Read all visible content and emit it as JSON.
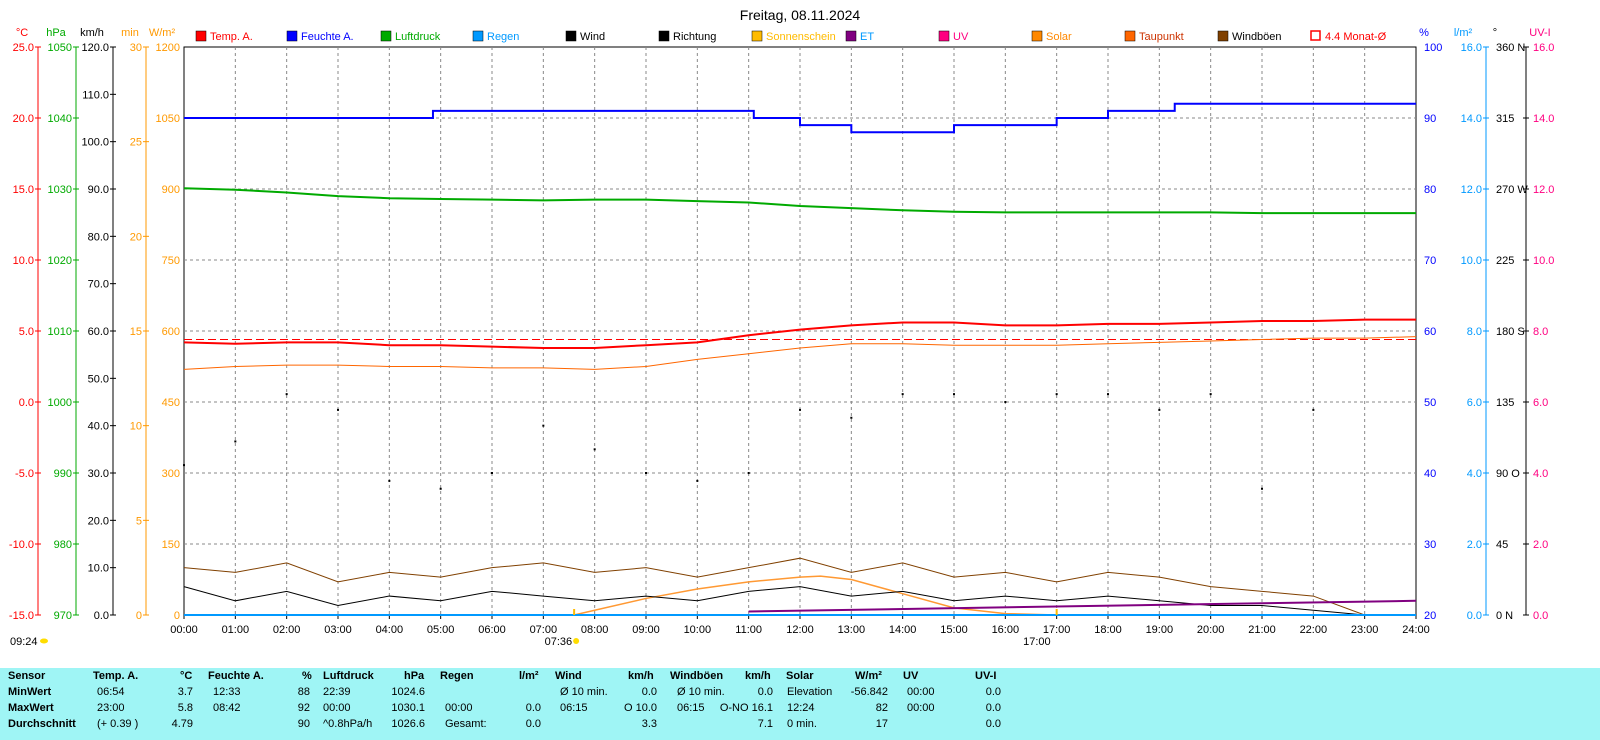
{
  "chart_data": {
    "type": "line",
    "title": "Freitag, 08.11.2024",
    "x_ticks": [
      "00:00",
      "01:00",
      "02:00",
      "03:00",
      "04:00",
      "05:00",
      "06:00",
      "07:00",
      "08:00",
      "09:00",
      "10:00",
      "11:00",
      "12:00",
      "13:00",
      "14:00",
      "15:00",
      "16:00",
      "17:00",
      "18:00",
      "19:00",
      "20:00",
      "21:00",
      "22:00",
      "23:00",
      "24:00"
    ],
    "x_range_hours": [
      0,
      24
    ],
    "grid": true,
    "legend": [
      {
        "name": "Temp. A.",
        "color": "#ff0000"
      },
      {
        "name": "Feuchte A.",
        "color": "#0000ff"
      },
      {
        "name": "Luftdruck",
        "color": "#00aa00"
      },
      {
        "name": "Regen",
        "color": "#0099ff"
      },
      {
        "name": "Wind",
        "color": "#000000"
      },
      {
        "name": "Richtung",
        "color": "#000000"
      },
      {
        "name": "Sonnenschein",
        "color": "#ffbb00"
      },
      {
        "name": "ET",
        "color": "#800080"
      },
      {
        "name": "UV",
        "color": "#ff0080"
      },
      {
        "name": "Solar",
        "color": "#ff8800"
      },
      {
        "name": "Taupunkt",
        "color": "#ff6600"
      },
      {
        "name": "Windböen",
        "color": "#804000"
      },
      {
        "name": "4.4 Monat-Ø",
        "color": "#ff0000"
      }
    ],
    "axes": {
      "temp": {
        "unit": "°C",
        "color": "#ff0000",
        "ticks": [
          "25.0",
          "20.0",
          "15.0",
          "10.0",
          "5.0",
          "0.0",
          "-5.0",
          "-10.0",
          "-15.0"
        ],
        "range": [
          -15,
          25
        ]
      },
      "pressure": {
        "unit": "hPa",
        "color": "#00aa00",
        "ticks": [
          "1050",
          "1040",
          "1030",
          "1020",
          "1010",
          "1000",
          "990",
          "980",
          "970"
        ],
        "range": [
          970,
          1050
        ]
      },
      "wind": {
        "unit": "km/h",
        "color": "#000000",
        "ticks": [
          "120.0",
          "110.0",
          "100.0",
          "90.0",
          "80.0",
          "70.0",
          "60.0",
          "50.0",
          "40.0",
          "30.0",
          "20.0",
          "10.0",
          "0.0"
        ],
        "range": [
          0,
          120
        ]
      },
      "minutes": {
        "unit": "min",
        "color": "#ff9900",
        "ticks": [
          "30",
          "25",
          "20",
          "15",
          "10",
          "5",
          "0"
        ],
        "range": [
          0,
          30
        ]
      },
      "solar": {
        "unit": "W/m²",
        "color": "#ff9900",
        "ticks": [
          "1200",
          "1050",
          "900",
          "750",
          "600",
          "450",
          "300",
          "150",
          "0"
        ],
        "range": [
          0,
          1200
        ]
      },
      "humidity": {
        "unit": "%",
        "color": "#0000ff",
        "ticks": [
          "100",
          "90",
          "80",
          "70",
          "60",
          "50",
          "40",
          "30",
          "20"
        ],
        "range": [
          20,
          100
        ]
      },
      "rain": {
        "unit": "l/m²",
        "color": "#0099ff",
        "ticks": [
          "16.0",
          "14.0",
          "12.0",
          "10.0",
          "8.0",
          "6.0",
          "4.0",
          "2.0",
          "0.0"
        ],
        "range": [
          0,
          16
        ]
      },
      "direction": {
        "unit": "°",
        "color": "#000000",
        "ticks": [
          "360 N",
          "315",
          "270 W",
          "225",
          "180 S",
          "135",
          "90 O",
          "45",
          "0 N"
        ],
        "range": [
          0,
          360
        ]
      },
      "uv": {
        "unit": "UV-I",
        "color": "#ff0080",
        "ticks": [
          "16.0",
          "14.0",
          "12.0",
          "10.0",
          "8.0",
          "6.0",
          "4.0",
          "2.0",
          "0.0"
        ],
        "range": [
          0,
          16
        ]
      }
    },
    "series": [
      {
        "name": "Temp. A.",
        "axis": "temp",
        "x": [
          0,
          1,
          2,
          3,
          4,
          5,
          6,
          7,
          8,
          9,
          10,
          11,
          12,
          13,
          14,
          15,
          16,
          17,
          18,
          19,
          20,
          21,
          22,
          23,
          24
        ],
        "values": [
          4.2,
          4.1,
          4.2,
          4.2,
          4.0,
          4.0,
          3.9,
          3.8,
          3.8,
          4.0,
          4.2,
          4.7,
          5.1,
          5.4,
          5.6,
          5.6,
          5.4,
          5.4,
          5.5,
          5.5,
          5.6,
          5.7,
          5.7,
          5.8,
          5.8
        ]
      },
      {
        "name": "4.4 Monat-Ø",
        "axis": "temp",
        "x": [
          0,
          24
        ],
        "values": [
          4.4,
          4.4
        ]
      },
      {
        "name": "Taupunkt",
        "axis": "temp",
        "x": [
          0,
          1,
          2,
          3,
          4,
          5,
          6,
          7,
          8,
          9,
          10,
          11,
          12,
          13,
          14,
          15,
          16,
          17,
          18,
          19,
          20,
          21,
          22,
          23,
          24
        ],
        "values": [
          2.3,
          2.5,
          2.6,
          2.6,
          2.5,
          2.5,
          2.4,
          2.4,
          2.3,
          2.5,
          3.0,
          3.4,
          3.8,
          4.1,
          4.1,
          4.0,
          4.0,
          4.0,
          4.1,
          4.2,
          4.3,
          4.4,
          4.5,
          4.5,
          4.6
        ]
      },
      {
        "name": "Feuchte A.",
        "axis": "humidity",
        "x": [
          0,
          4.8,
          4.85,
          11.0,
          11.1,
          11.9,
          12.0,
          13.0,
          15.0,
          16.0,
          16.9,
          17.0,
          17.9,
          18.0,
          19.2,
          19.3,
          24
        ],
        "values": [
          90,
          90,
          91,
          91,
          90,
          90,
          89,
          88,
          89,
          89,
          89,
          90,
          90,
          91,
          91,
          92,
          92
        ]
      },
      {
        "name": "Luftdruck",
        "axis": "pressure",
        "x": [
          0,
          1,
          2,
          3,
          4,
          5,
          6,
          7,
          8,
          9,
          10,
          11,
          12,
          13,
          14,
          15,
          16,
          17,
          18,
          19,
          20,
          21,
          22,
          23,
          24
        ],
        "values": [
          1030.1,
          1029.9,
          1029.5,
          1029.0,
          1028.7,
          1028.6,
          1028.5,
          1028.4,
          1028.5,
          1028.5,
          1028.3,
          1028.1,
          1027.6,
          1027.3,
          1027.0,
          1026.8,
          1026.7,
          1026.7,
          1026.7,
          1026.7,
          1026.7,
          1026.6,
          1026.6,
          1026.6,
          1026.6
        ]
      },
      {
        "name": "Solar",
        "axis": "solar",
        "x": [
          7.6,
          8,
          9,
          10,
          11,
          12,
          12.4,
          13,
          14,
          15,
          16,
          17
        ],
        "values": [
          0,
          10,
          35,
          55,
          70,
          80,
          82,
          75,
          45,
          15,
          3,
          0
        ]
      },
      {
        "name": "Wind",
        "axis": "wind",
        "x": [
          0,
          1,
          2,
          3,
          4,
          5,
          6,
          7,
          8,
          9,
          10,
          11,
          12,
          13,
          14,
          15,
          16,
          17,
          18,
          19,
          20,
          21,
          22,
          23
        ],
        "values": [
          6,
          3,
          5,
          2,
          4,
          3,
          5,
          4,
          3,
          4,
          3,
          5,
          6,
          4,
          5,
          3,
          4,
          3,
          4,
          3,
          2,
          2,
          1,
          0
        ]
      },
      {
        "name": "Windböen",
        "axis": "wind",
        "x": [
          0,
          1,
          2,
          3,
          4,
          5,
          6,
          7,
          8,
          9,
          10,
          11,
          12,
          13,
          14,
          15,
          16,
          17,
          18,
          19,
          20,
          21,
          22,
          23
        ],
        "values": [
          10,
          9,
          11,
          7,
          9,
          8,
          10,
          11,
          9,
          10,
          8,
          10,
          12,
          9,
          11,
          8,
          9,
          7,
          9,
          8,
          6,
          5,
          4,
          0
        ]
      },
      {
        "name": "Richtung",
        "axis": "direction",
        "x": [
          0,
          1,
          2,
          3,
          4,
          5,
          6,
          7,
          8,
          9,
          10,
          11,
          12,
          13,
          14,
          15,
          16,
          17,
          18,
          19,
          20,
          21,
          22,
          23
        ],
        "values": [
          95,
          110,
          140,
          130,
          85,
          80,
          90,
          120,
          105,
          90,
          85,
          90,
          130,
          125,
          140,
          140,
          135,
          140,
          140,
          130,
          140,
          80,
          130,
          0
        ]
      },
      {
        "name": "ET",
        "axis": "uv",
        "x": [
          11,
          24
        ],
        "values": [
          0.1,
          0.4
        ]
      },
      {
        "name": "Regen",
        "axis": "rain",
        "x": [
          0,
          24
        ],
        "values": [
          0,
          0
        ]
      }
    ],
    "annotations": {
      "sunrise": "07:36",
      "sunset": "17:00",
      "current_time": "09:24"
    }
  },
  "stats": {
    "headers": {
      "sensor": "Sensor",
      "temp": "Temp. A.",
      "temp_unit": "°C",
      "hum": "Feuchte A.",
      "hum_unit": "%",
      "press": "Luftdruck",
      "press_unit": "hPa",
      "rain": "Regen",
      "rain_unit": "l/m²",
      "wind": "Wind",
      "wind_unit": "km/h",
      "gust": "Windböen",
      "gust_unit": "km/h",
      "solar": "Solar",
      "solar_unit": "W/m²",
      "uv": "UV",
      "uv_unit": "UV-I"
    },
    "rows": [
      {
        "label": "MinWert",
        "temp_time": "06:54",
        "temp_val": "3.7",
        "hum_time": "12:33",
        "hum_val": "88",
        "press_time": "22:39",
        "press_val": "1024.6",
        "rain_time": "",
        "rain_val": "",
        "wind_time": "Ø 10 min.",
        "wind_val": "0.0",
        "gust_time": "Ø 10 min.",
        "gust_val": "0.0",
        "solar_time": "Elevation",
        "solar_val": "-56.842",
        "uv_time": "00:00",
        "uv_val": "0.0"
      },
      {
        "label": "MaxWert",
        "temp_time": "23:00",
        "temp_val": "5.8",
        "hum_time": "08:42",
        "hum_val": "92",
        "press_time": "00:00",
        "press_val": "1030.1",
        "rain_time": "00:00",
        "rain_val": "0.0",
        "wind_time": "06:15",
        "wind_val": "O 10.0",
        "gust_time": "06:15",
        "gust_val": "O-NO 16.1",
        "solar_time": "12:24",
        "solar_val": "82",
        "uv_time": "00:00",
        "uv_val": "0.0"
      },
      {
        "label": "Durchschnitt",
        "temp_time": "(+ 0.39 )",
        "temp_val": "4.79",
        "hum_time": "",
        "hum_val": "90",
        "press_time": "^0.8hPa/h",
        "press_val": "1026.6",
        "rain_time": "Gesamt:",
        "rain_val": "0.0",
        "wind_time": "",
        "wind_val": "3.3",
        "gust_time": "",
        "gust_val": "7.1",
        "solar_time": "0 min.",
        "solar_val": "17",
        "uv_time": "",
        "uv_val": "0.0"
      }
    ]
  }
}
